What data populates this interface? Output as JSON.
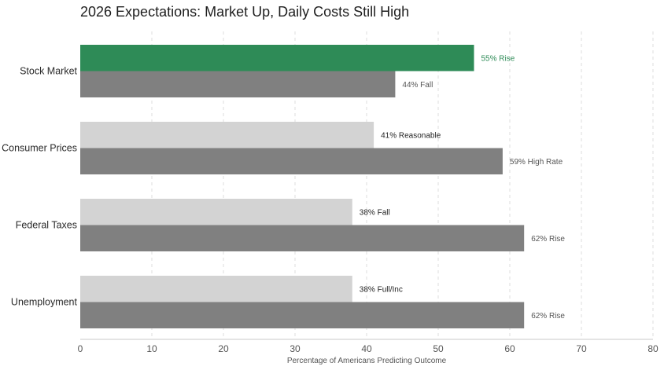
{
  "chart_data": {
    "type": "bar",
    "orientation": "horizontal",
    "title": "2026 Expectations: Market Up, Daily Costs Still High",
    "xlabel": "Percentage of Americans Predicting Outcome",
    "ylabel": "",
    "xlim": [
      0,
      80
    ],
    "xticks": [
      0,
      10,
      20,
      30,
      40,
      50,
      60,
      70,
      80
    ],
    "grid": true,
    "categories": [
      "Stock Market",
      "Consumer Prices",
      "Federal Taxes",
      "Unemployment"
    ],
    "series": [
      {
        "name": "upper",
        "values": [
          55,
          41,
          38,
          38
        ],
        "labels": [
          "55% Rise",
          "41% Reasonable",
          "38% Fall",
          "38% Full/Inc"
        ],
        "colors": [
          "#2e8b57",
          "#d3d3d3",
          "#d3d3d3",
          "#d3d3d3"
        ],
        "label_colors": [
          "#2e8b57",
          "#1f1f1f",
          "#1f1f1f",
          "#1f1f1f"
        ]
      },
      {
        "name": "lower",
        "values": [
          44,
          59,
          62,
          62
        ],
        "labels": [
          "44% Fall",
          "59% High Rate",
          "62% Rise",
          "62% Rise"
        ],
        "colors": [
          "#808080",
          "#808080",
          "#808080",
          "#808080"
        ],
        "label_colors": [
          "#555555",
          "#555555",
          "#555555",
          "#555555"
        ]
      }
    ]
  }
}
